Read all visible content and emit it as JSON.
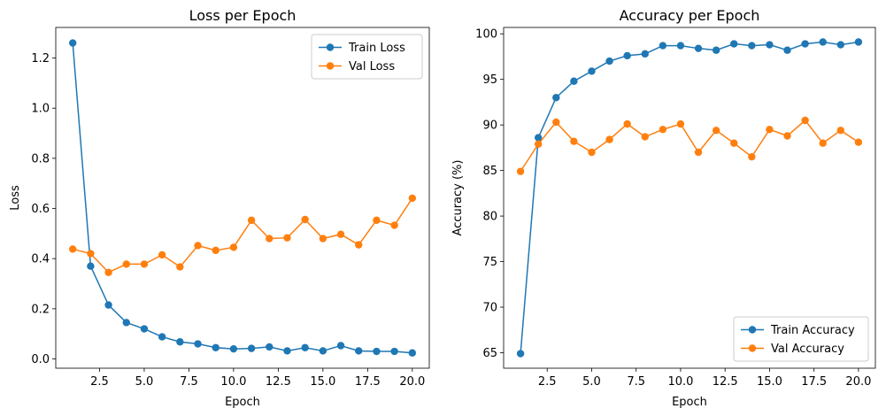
{
  "chart_data": [
    {
      "type": "line",
      "title": "Loss per Epoch",
      "xlabel": "Epoch",
      "ylabel": "Loss",
      "xlim": [
        0.05,
        20.95
      ],
      "ylim": [
        -0.037,
        1.322
      ],
      "xticks": [
        2.5,
        5.0,
        7.5,
        10.0,
        12.5,
        15.0,
        17.5,
        20.0
      ],
      "xtick_labels": [
        "2.5",
        "5.0",
        "7.5",
        "10.0",
        "12.5",
        "15.0",
        "17.5",
        "20.0"
      ],
      "yticks": [
        0.0,
        0.2,
        0.4,
        0.6,
        0.8,
        1.0,
        1.2
      ],
      "ytick_labels": [
        "0.0",
        "0.2",
        "0.4",
        "0.6",
        "0.8",
        "1.0",
        "1.2"
      ],
      "legend": "top-right",
      "grid": false,
      "x": [
        1,
        2,
        3,
        4,
        5,
        6,
        7,
        8,
        9,
        10,
        11,
        12,
        13,
        14,
        15,
        16,
        17,
        18,
        19,
        20
      ],
      "series": [
        {
          "name": "Train Loss",
          "color": "#1f77b4",
          "values": [
            1.26,
            0.37,
            0.215,
            0.145,
            0.12,
            0.088,
            0.068,
            0.06,
            0.045,
            0.04,
            0.042,
            0.048,
            0.032,
            0.045,
            0.032,
            0.053,
            0.032,
            0.03,
            0.03,
            0.024
          ]
        },
        {
          "name": "Val Loss",
          "color": "#ff7f0e",
          "values": [
            0.438,
            0.42,
            0.345,
            0.378,
            0.378,
            0.415,
            0.367,
            0.452,
            0.433,
            0.445,
            0.553,
            0.48,
            0.483,
            0.556,
            0.48,
            0.497,
            0.455,
            0.553,
            0.533,
            0.641
          ]
        }
      ]
    },
    {
      "type": "line",
      "title": "Accuracy per Epoch",
      "xlabel": "Epoch",
      "ylabel": "Accuracy (%)",
      "xlim": [
        0.05,
        20.95
      ],
      "ylim": [
        63.3,
        100.7
      ],
      "xticks": [
        2.5,
        5.0,
        7.5,
        10.0,
        12.5,
        15.0,
        17.5,
        20.0
      ],
      "xtick_labels": [
        "2.5",
        "5.0",
        "7.5",
        "10.0",
        "12.5",
        "15.0",
        "17.5",
        "20.0"
      ],
      "yticks": [
        65,
        70,
        75,
        80,
        85,
        90,
        95,
        100
      ],
      "ytick_labels": [
        "65",
        "70",
        "75",
        "80",
        "85",
        "90",
        "95",
        "100"
      ],
      "legend": "bottom-right",
      "grid": false,
      "x": [
        1,
        2,
        3,
        4,
        5,
        6,
        7,
        8,
        9,
        10,
        11,
        12,
        13,
        14,
        15,
        16,
        17,
        18,
        19,
        20
      ],
      "series": [
        {
          "name": "Train Accuracy",
          "color": "#1f77b4",
          "values": [
            64.9,
            88.6,
            93.0,
            94.8,
            95.9,
            97.0,
            97.6,
            97.8,
            98.7,
            98.7,
            98.4,
            98.2,
            98.9,
            98.7,
            98.8,
            98.2,
            98.9,
            99.1,
            98.8,
            99.1
          ]
        },
        {
          "name": "Val Accuracy",
          "color": "#ff7f0e",
          "values": [
            84.9,
            87.9,
            90.3,
            88.2,
            87.0,
            88.4,
            90.1,
            88.7,
            89.5,
            90.1,
            87.0,
            89.4,
            88.0,
            86.5,
            89.5,
            88.8,
            90.5,
            88.0,
            89.4,
            88.1
          ]
        }
      ]
    }
  ]
}
